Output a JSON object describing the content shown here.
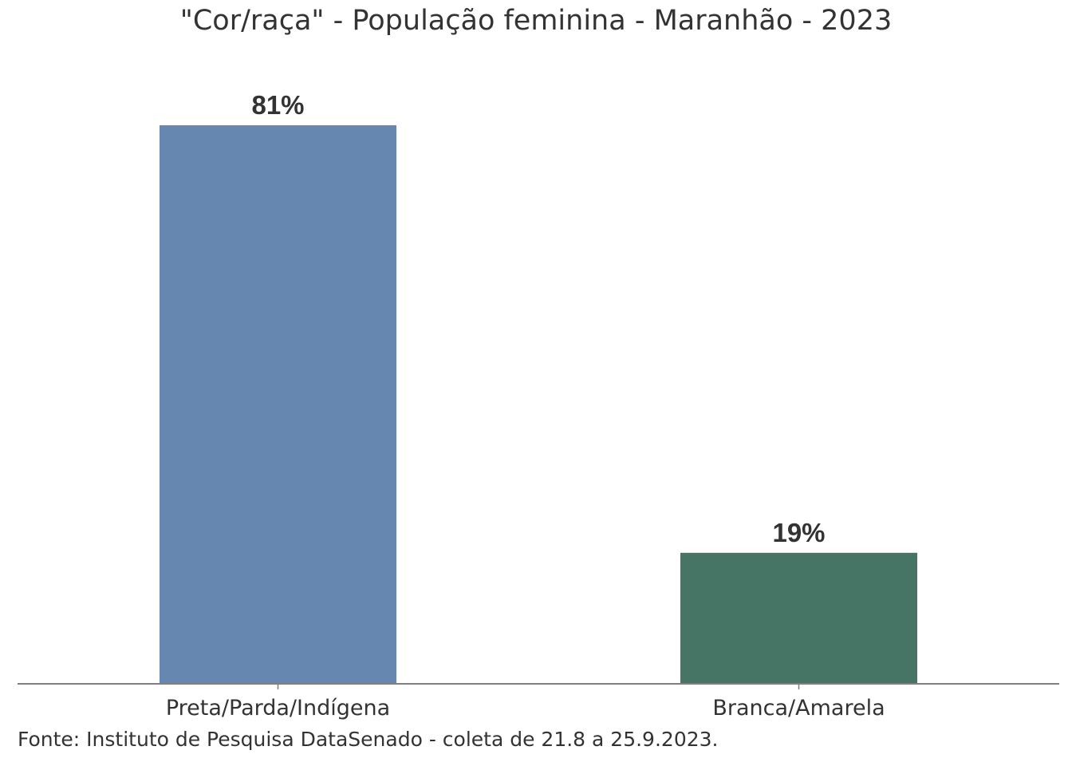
{
  "chart_data": {
    "type": "bar",
    "title": "\"Cor/raça\" - População feminina - Maranhão - 2023",
    "categories": [
      "Preta/Parda/Indígena",
      "Branca/Amarela"
    ],
    "values": [
      81,
      19
    ],
    "value_labels": [
      "81%",
      "19%"
    ],
    "bar_colors": [
      "#6688b0",
      "#467565"
    ],
    "xlabel": "",
    "ylabel": "",
    "ylim": [
      0,
      100
    ],
    "grid": false,
    "legend": "none",
    "source": "Fonte: Instituto de Pesquisa DataSenado - coleta de 21.8 a 25.9.2023."
  },
  "colors": {
    "text": "#333333",
    "axis": "#7f7f7f"
  }
}
